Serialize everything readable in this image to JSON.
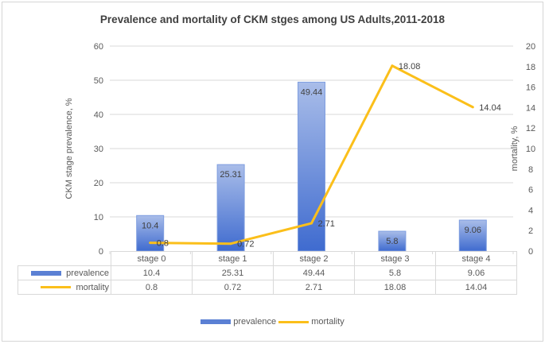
{
  "chart_data": {
    "type": "bar",
    "title": "Prevalence and mortality of CKM stges among US Adults,2011-2018",
    "categories": [
      "stage 0",
      "stage 1",
      "stage 2",
      "stage 3",
      "stage 4"
    ],
    "series": [
      {
        "name": "prevalence",
        "type": "bar",
        "axis": "left",
        "values": [
          10.4,
          25.31,
          49.44,
          5.8,
          9.06
        ],
        "color": "#4472c4"
      },
      {
        "name": "mortality",
        "type": "line",
        "axis": "right",
        "values": [
          0.8,
          0.72,
          2.71,
          18.08,
          14.04
        ],
        "color": "#fbbf1a"
      }
    ],
    "ylabel": "CKM stage prevalence,  %",
    "y2label": "mortality,  %",
    "ylim": [
      0,
      60
    ],
    "y2lim": [
      0,
      20
    ],
    "yticks": [
      "0",
      "10",
      "20",
      "30",
      "40",
      "50",
      "60"
    ],
    "y2ticks": [
      "0",
      "2",
      "4",
      "6",
      "8",
      "10",
      "12",
      "14",
      "16",
      "18",
      "20"
    ],
    "grid": true,
    "data_table": true,
    "legend": "bottom-center"
  }
}
